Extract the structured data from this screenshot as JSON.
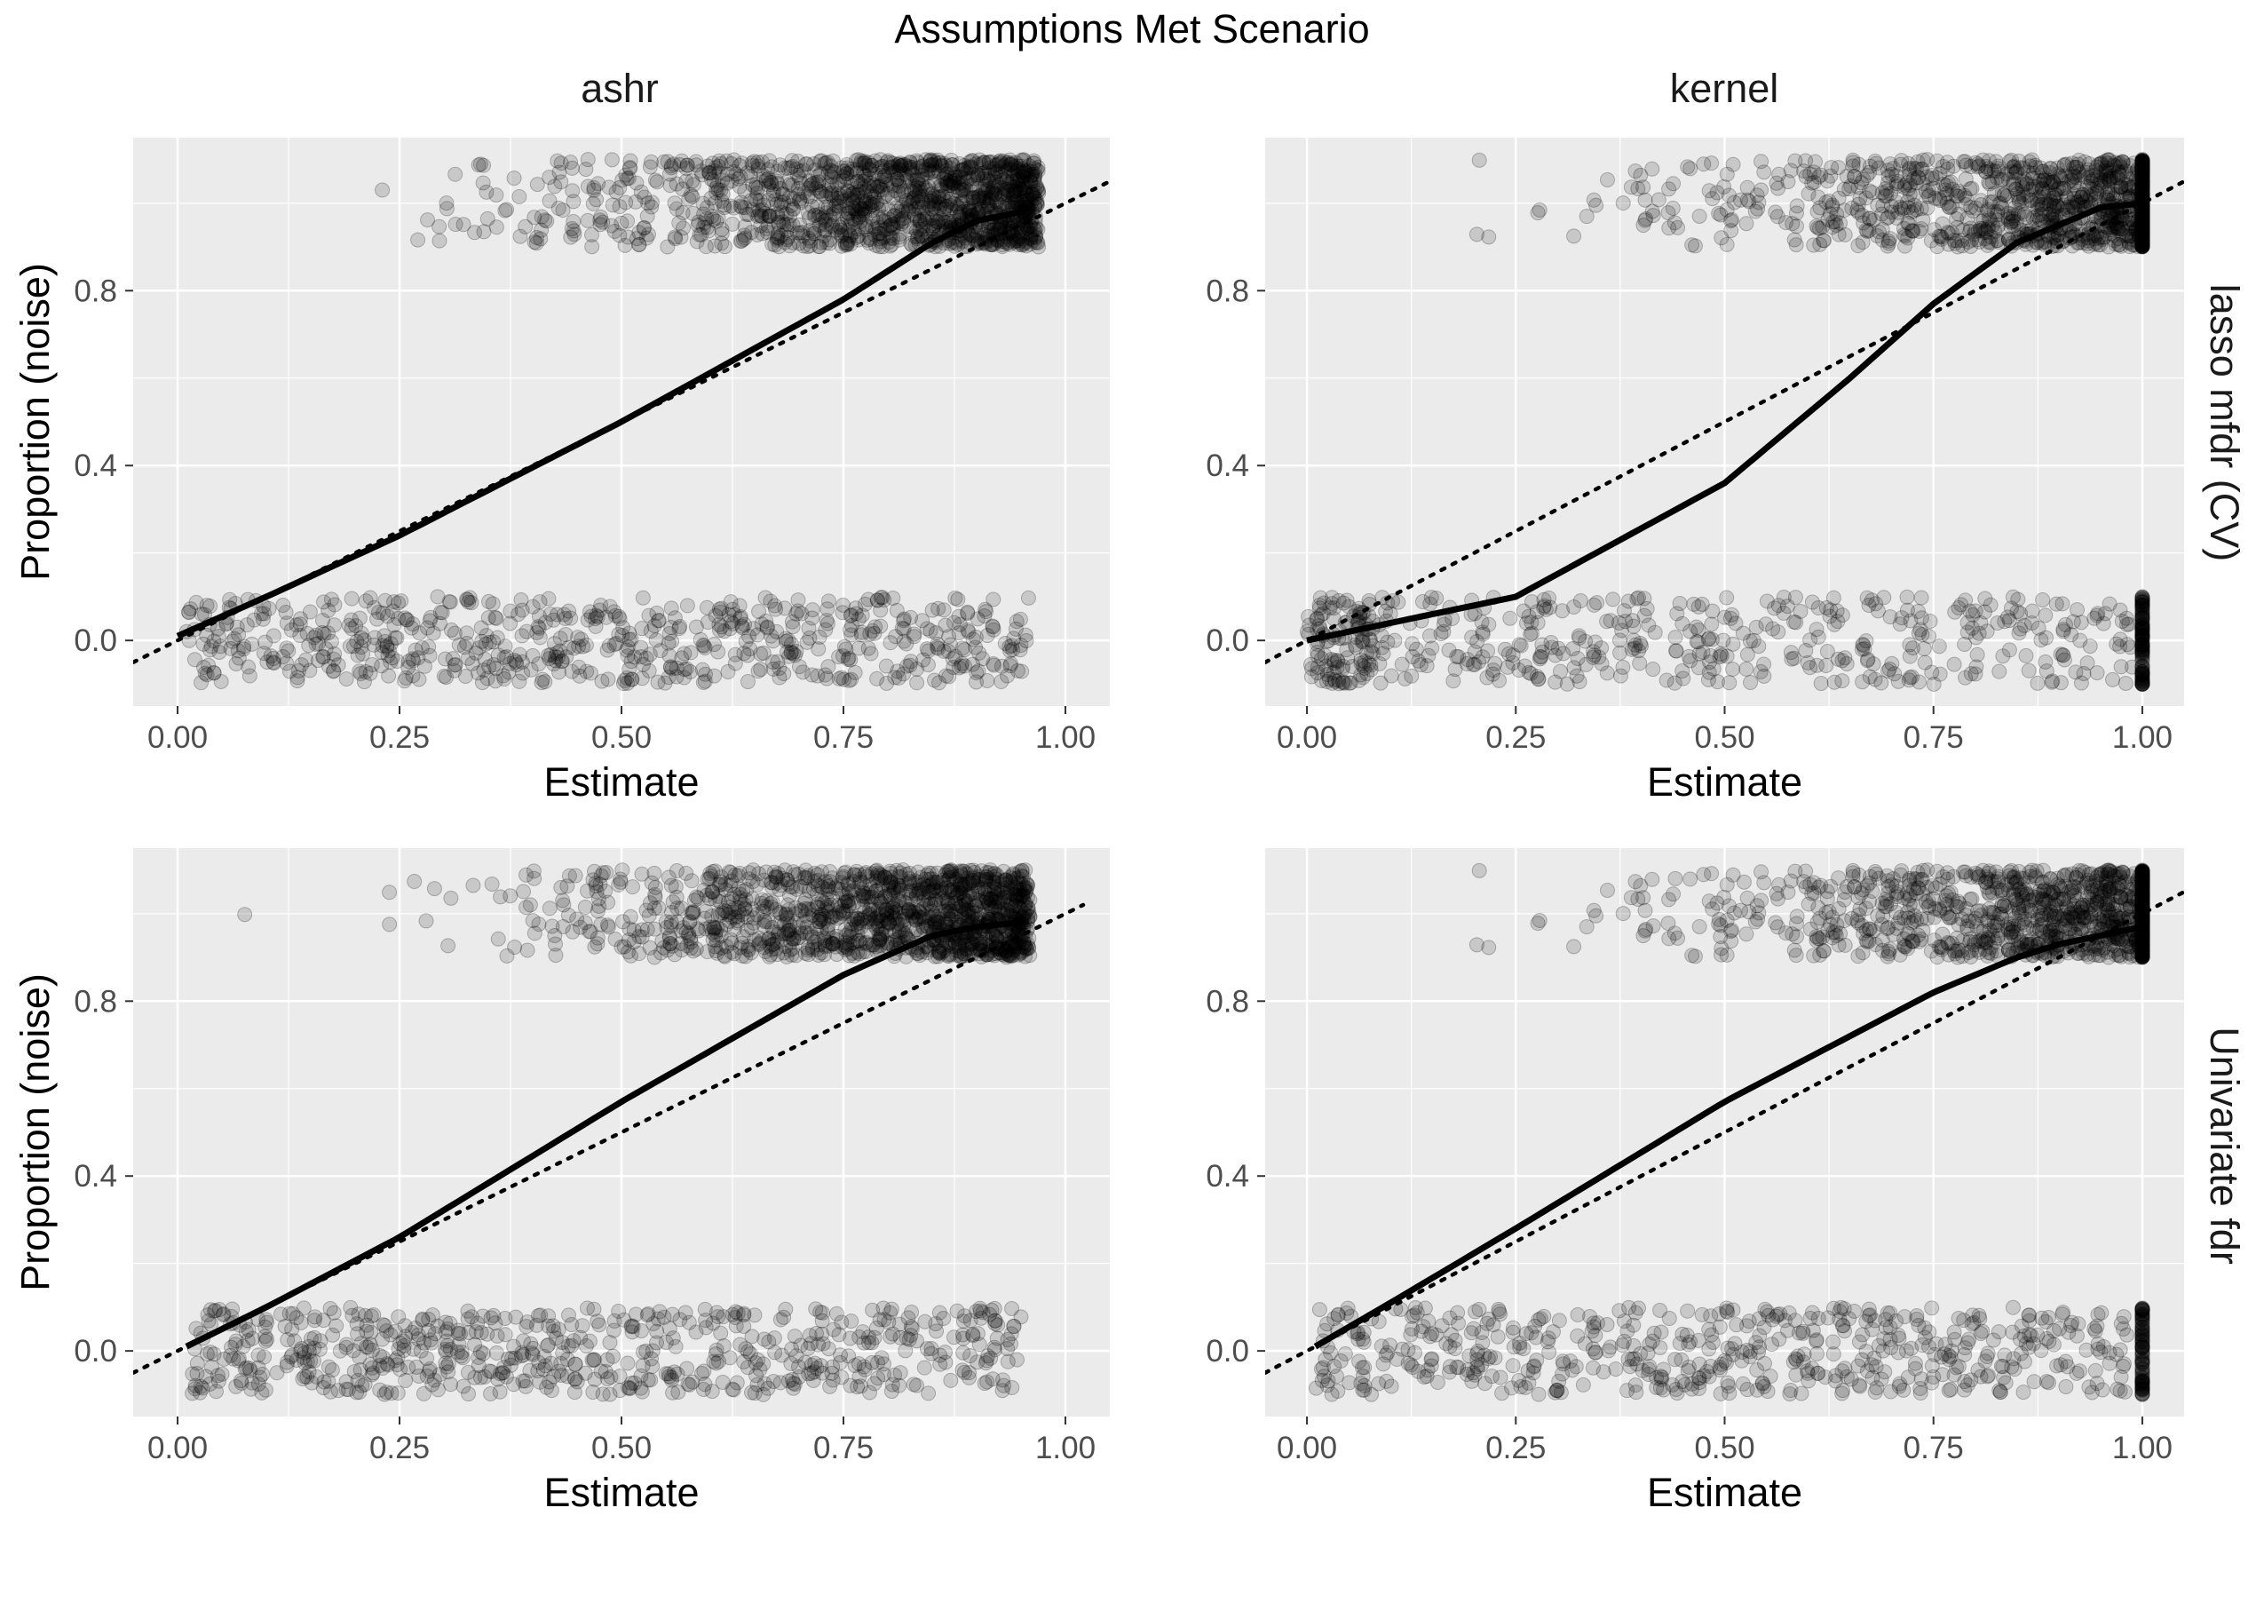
{
  "title": "Assumptions Met Scenario",
  "columns": [
    "ashr",
    "kernel"
  ],
  "rows": [
    "lasso mfdr (CV)",
    "Univariate fdr"
  ],
  "xlabel": "Estimate",
  "ylabel": "Proportion (noise)",
  "colors": {
    "panel_bg": "#ebebeb",
    "grid": "#ffffff",
    "points": "#000000",
    "tick_text": "#4d4d4d"
  },
  "chart_data": [
    {
      "type": "scatter",
      "facet": {
        "column": "ashr",
        "row": "lasso mfdr (CV)"
      },
      "xlabel": "Estimate",
      "ylabel": "Proportion (noise)",
      "xlim": [
        -0.05,
        1.05
      ],
      "ylim": [
        -0.15,
        1.15
      ],
      "xticks": [
        "0.00",
        "0.25",
        "0.50",
        "0.75",
        "1.00"
      ],
      "yticks": [
        "0.0",
        "0.4",
        "0.8"
      ],
      "points": {
        "outcomes": [
          0,
          1
        ],
        "jitter": 0.1,
        "x_max": 0.97,
        "point_alpha": 0.15
      },
      "series": [
        {
          "style": "smooth",
          "x": [
            0,
            0.1,
            0.25,
            0.5,
            0.75,
            0.85,
            0.9,
            0.95
          ],
          "y": [
            0.01,
            0.1,
            0.24,
            0.5,
            0.78,
            0.91,
            0.96,
            0.98
          ]
        },
        {
          "style": "identity",
          "x": [
            -0.05,
            1.05
          ],
          "y": [
            -0.05,
            1.05
          ]
        }
      ]
    },
    {
      "type": "scatter",
      "facet": {
        "column": "kernel",
        "row": "lasso mfdr (CV)"
      },
      "xlabel": "Estimate",
      "ylabel": "",
      "xlim": [
        -0.05,
        1.05
      ],
      "ylim": [
        -0.15,
        1.15
      ],
      "xticks": [
        "0.00",
        "0.25",
        "0.50",
        "0.75",
        "1.00"
      ],
      "yticks": [
        "0.0",
        "0.4",
        "0.8"
      ],
      "points": {
        "outcomes": [
          0,
          1
        ],
        "jitter": 0.1,
        "x_max": 1.0,
        "point_alpha": 0.15
      },
      "series": [
        {
          "style": "smooth",
          "x": [
            0,
            0.1,
            0.25,
            0.5,
            0.65,
            0.75,
            0.85,
            0.95,
            1.0
          ],
          "y": [
            0.0,
            0.04,
            0.1,
            0.36,
            0.6,
            0.77,
            0.91,
            0.99,
            1.0
          ]
        },
        {
          "style": "identity",
          "x": [
            -0.05,
            1.05
          ],
          "y": [
            -0.05,
            1.05
          ]
        }
      ]
    },
    {
      "type": "scatter",
      "facet": {
        "column": "ashr",
        "row": "Univariate fdr"
      },
      "xlabel": "Estimate",
      "ylabel": "Proportion (noise)",
      "xlim": [
        -0.05,
        1.05
      ],
      "ylim": [
        -0.15,
        1.15
      ],
      "xticks": [
        "0.00",
        "0.25",
        "0.50",
        "0.75",
        "1.00"
      ],
      "yticks": [
        "0.0",
        "0.4",
        "0.8"
      ],
      "points": {
        "outcomes": [
          0,
          1
        ],
        "jitter": 0.1,
        "x_max": 0.96,
        "point_alpha": 0.15
      },
      "series": [
        {
          "style": "smooth",
          "x": [
            0.01,
            0.1,
            0.25,
            0.5,
            0.75,
            0.85,
            0.9,
            0.95
          ],
          "y": [
            0.01,
            0.1,
            0.26,
            0.57,
            0.86,
            0.95,
            0.97,
            0.98
          ]
        },
        {
          "style": "identity",
          "x": [
            -0.05,
            1.02
          ],
          "y": [
            -0.05,
            1.02
          ]
        }
      ]
    },
    {
      "type": "scatter",
      "facet": {
        "column": "kernel",
        "row": "Univariate fdr"
      },
      "xlabel": "Estimate",
      "ylabel": "",
      "xlim": [
        -0.05,
        1.05
      ],
      "ylim": [
        -0.15,
        1.15
      ],
      "xticks": [
        "0.00",
        "0.25",
        "0.50",
        "0.75",
        "1.00"
      ],
      "yticks": [
        "0.0",
        "0.4",
        "0.8"
      ],
      "points": {
        "outcomes": [
          0,
          1
        ],
        "jitter": 0.1,
        "x_max": 1.0,
        "point_alpha": 0.15
      },
      "series": [
        {
          "style": "smooth",
          "x": [
            0.01,
            0.1,
            0.25,
            0.5,
            0.75,
            0.85,
            0.9,
            1.0
          ],
          "y": [
            0.01,
            0.11,
            0.28,
            0.57,
            0.82,
            0.9,
            0.93,
            0.97
          ]
        },
        {
          "style": "identity",
          "x": [
            -0.05,
            1.05
          ],
          "y": [
            -0.05,
            1.05
          ]
        }
      ]
    }
  ]
}
